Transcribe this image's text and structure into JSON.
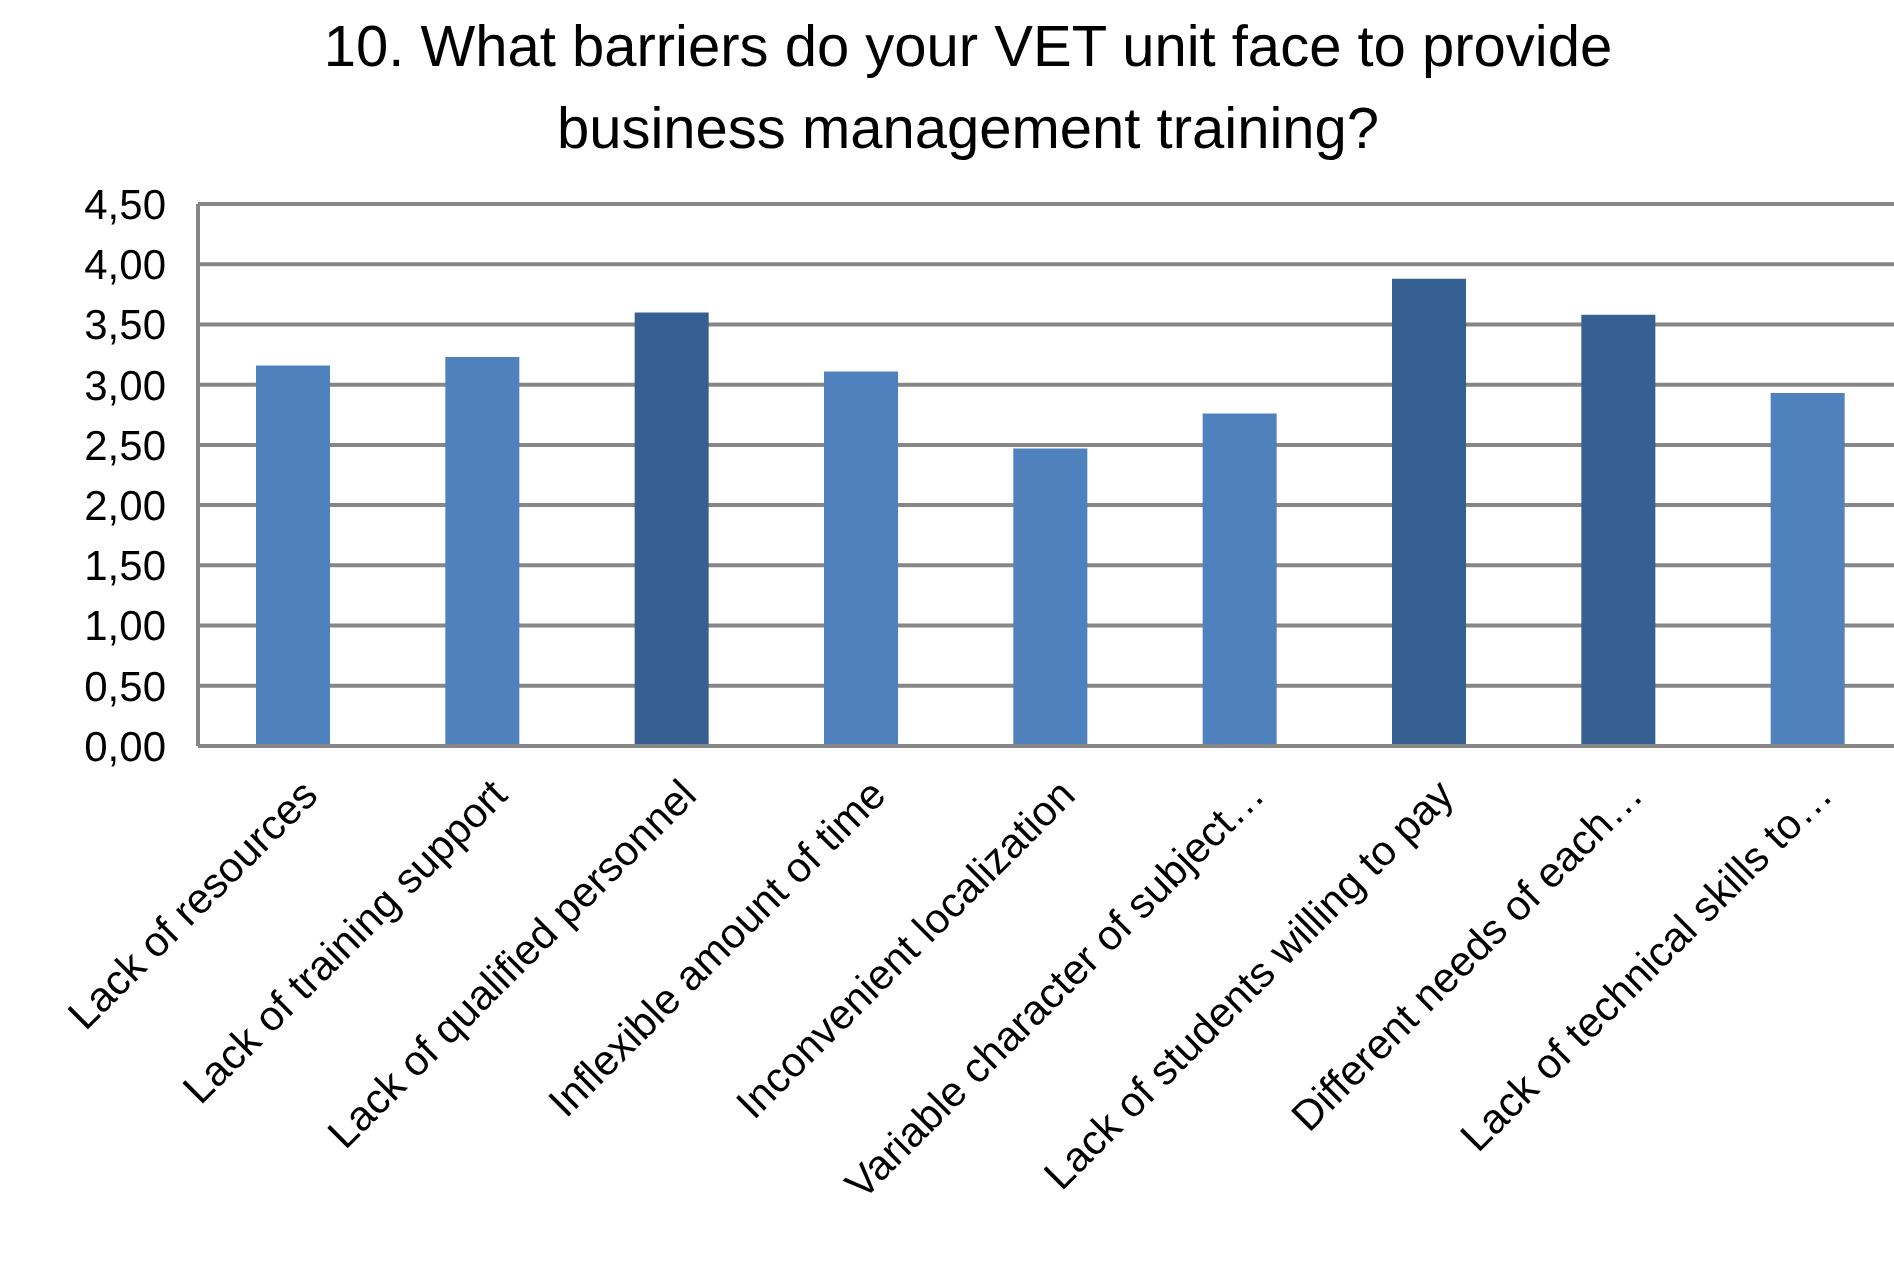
{
  "chart_data": {
    "type": "bar",
    "title": "10. What barriers do your VET unit face to provide business management training?",
    "categories": [
      "Lack of resources",
      "Lack of training support",
      "Lack of qualified personnel",
      "Inflexible amount of time",
      "Inconvenient localization",
      "Variable character of subject…",
      "Lack of students willing to pay",
      "Different needs of each…",
      "Lack of technical skills to…"
    ],
    "values": [
      3.16,
      3.23,
      3.6,
      3.11,
      2.47,
      2.76,
      3.88,
      3.58,
      2.93
    ],
    "colors": [
      "#4f81bd",
      "#4f81bd",
      "#366092",
      "#4f81bd",
      "#4f81bd",
      "#4f81bd",
      "#366092",
      "#366092",
      "#4f81bd"
    ],
    "ylim": [
      0,
      4.5
    ],
    "yticks": [
      {
        "value": 0,
        "label": "0,00"
      },
      {
        "value": 0.5,
        "label": "0,50"
      },
      {
        "value": 1,
        "label": "1,00"
      },
      {
        "value": 1.5,
        "label": "1,50"
      },
      {
        "value": 2,
        "label": "2,00"
      },
      {
        "value": 2.5,
        "label": "2,50"
      },
      {
        "value": 3,
        "label": "3,00"
      },
      {
        "value": 3.5,
        "label": "3,50"
      },
      {
        "value": 4,
        "label": "4,00"
      },
      {
        "value": 4.5,
        "label": "4,50"
      }
    ],
    "grid": "y"
  }
}
